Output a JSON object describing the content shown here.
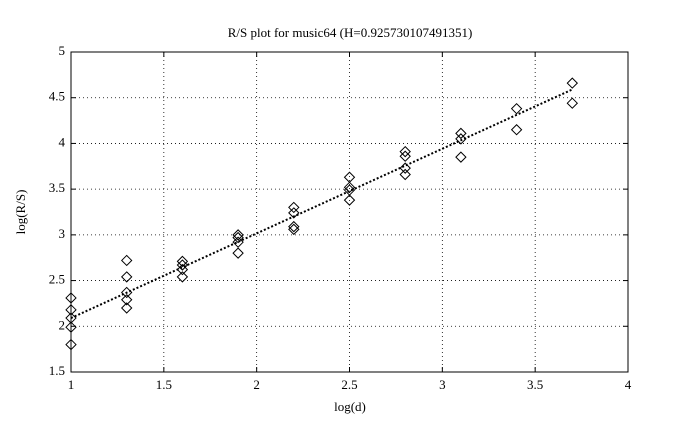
{
  "chart_data": {
    "type": "scatter",
    "title": "R/S plot for music64 (H=0.925730107491351)",
    "x_label": "log(d)",
    "y_label": "log(R/S)",
    "xlim": [
      1,
      4
    ],
    "ylim": [
      1.5,
      5
    ],
    "xticks": [
      1,
      1.5,
      2,
      2.5,
      3,
      3.5,
      4
    ],
    "yticks": [
      1.5,
      2,
      2.5,
      3,
      3.5,
      4,
      4.5,
      5
    ],
    "grid": true,
    "color": "#000000",
    "points": {
      "x": [
        1,
        1,
        1,
        1,
        1,
        1.3,
        1.3,
        1.3,
        1.3,
        1.3,
        1.6,
        1.6,
        1.6,
        1.6,
        1.9,
        1.9,
        1.9,
        1.9,
        2.2,
        2.2,
        2.2,
        2.2,
        2.5,
        2.5,
        2.5,
        2.5,
        2.8,
        2.8,
        2.8,
        2.8,
        3.1,
        3.1,
        3.1,
        3.4,
        3.4,
        3.7,
        3.7
      ],
      "y": [
        2.31,
        2.18,
        2.09,
        1.99,
        1.8,
        2.72,
        2.54,
        2.37,
        2.29,
        2.2,
        2.71,
        2.67,
        2.62,
        2.54,
        3.0,
        2.97,
        2.92,
        2.8,
        3.3,
        3.24,
        3.09,
        3.06,
        3.63,
        3.52,
        3.49,
        3.38,
        3.91,
        3.86,
        3.73,
        3.66,
        4.11,
        4.05,
        3.85,
        4.38,
        4.15,
        4.66,
        4.44
      ]
    },
    "fit_line": {
      "x": [
        1,
        3.7
      ],
      "y": [
        2.09,
        4.59
      ]
    }
  }
}
